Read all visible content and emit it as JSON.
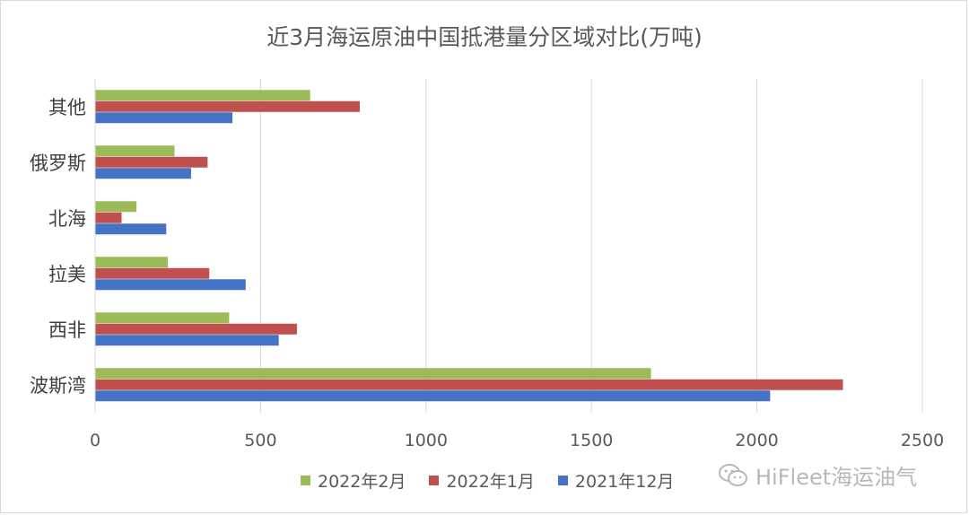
{
  "chart_data": {
    "type": "bar",
    "orientation": "horizontal",
    "title": "近3月海运原油中国抵港量分区域对比(万吨)",
    "categories": [
      "波斯湾",
      "西非",
      "拉美",
      "北海",
      "俄罗斯",
      "其他"
    ],
    "series": [
      {
        "name": "2021年12月",
        "color": "#4472c4",
        "values": [
          2040,
          555,
          455,
          215,
          290,
          415
        ]
      },
      {
        "name": "2022年1月",
        "color": "#c0504d",
        "values": [
          2260,
          610,
          345,
          80,
          340,
          800
        ]
      },
      {
        "name": "2022年2月",
        "color": "#9bbb59",
        "values": [
          1680,
          405,
          220,
          125,
          240,
          650
        ]
      }
    ],
    "xlim": [
      0,
      2500
    ],
    "xticks": [
      "0",
      "500",
      "1000",
      "1500",
      "2000",
      "2500"
    ],
    "grid": "vertical",
    "legend": "bottom"
  },
  "watermark": {
    "text": "HiFleet海运油气",
    "icon": "wechat-icon"
  }
}
